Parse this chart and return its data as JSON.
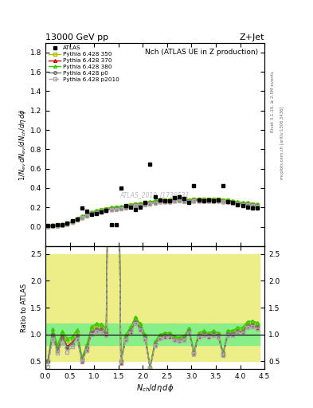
{
  "title_top": "13000 GeV pp",
  "title_right": "Z+Jet",
  "plot_title": "Nch (ATLAS UE in Z production)",
  "xlabel": "$N_{ch}/d\\eta\\,d\\phi$",
  "ylabel_main": "$1/N_{ev}\\,dN_{ev}/dN_{ch}/d\\eta\\,d\\phi$",
  "ylabel_ratio": "Ratio to ATLAS",
  "watermark": "ATLAS_2019_I1736531",
  "right_label_top": "Rivet 3.1.10, ≥ 2.5M events",
  "right_label_bot": "mcplots.cern.ch [arXiv:1306.3436]",
  "xlim": [
    0,
    4.5
  ],
  "ylim_main": [
    -0.2,
    1.9
  ],
  "ylim_ratio": [
    0.35,
    2.65
  ],
  "atlas_x": [
    0.05,
    0.15,
    0.25,
    0.35,
    0.45,
    0.55,
    0.65,
    0.75,
    0.85,
    0.95,
    1.05,
    1.15,
    1.25,
    1.35,
    1.45,
    1.55,
    1.65,
    1.75,
    1.85,
    1.95,
    2.05,
    2.15,
    2.25,
    2.35,
    2.45,
    2.55,
    2.65,
    2.75,
    2.85,
    2.95,
    3.05,
    3.15,
    3.25,
    3.35,
    3.45,
    3.55,
    3.65,
    3.75,
    3.85,
    3.95,
    4.05,
    4.15,
    4.25,
    4.35
  ],
  "atlas_y": [
    0.01,
    0.01,
    0.02,
    0.02,
    0.04,
    0.06,
    0.08,
    0.19,
    0.16,
    0.13,
    0.14,
    0.15,
    0.17,
    0.02,
    0.02,
    0.4,
    0.22,
    0.2,
    0.18,
    0.2,
    0.25,
    0.65,
    0.31,
    0.28,
    0.27,
    0.27,
    0.3,
    0.31,
    0.29,
    0.25,
    0.42,
    0.28,
    0.27,
    0.28,
    0.27,
    0.28,
    0.42,
    0.26,
    0.25,
    0.23,
    0.22,
    0.2,
    0.19,
    0.19
  ],
  "py350_x": [
    0.05,
    0.15,
    0.25,
    0.35,
    0.45,
    0.55,
    0.65,
    0.75,
    0.85,
    0.95,
    1.05,
    1.15,
    1.25,
    1.35,
    1.45,
    1.55,
    1.65,
    1.75,
    1.85,
    1.95,
    2.05,
    2.15,
    2.25,
    2.35,
    2.45,
    2.55,
    2.65,
    2.75,
    2.85,
    2.95,
    3.05,
    3.15,
    3.25,
    3.35,
    3.45,
    3.55,
    3.65,
    3.75,
    3.85,
    3.95,
    4.05,
    4.15,
    4.25,
    4.35
  ],
  "py350_y": [
    0.005,
    0.01,
    0.015,
    0.02,
    0.035,
    0.055,
    0.082,
    0.105,
    0.125,
    0.145,
    0.163,
    0.175,
    0.185,
    0.193,
    0.198,
    0.203,
    0.213,
    0.223,
    0.233,
    0.235,
    0.243,
    0.253,
    0.263,
    0.272,
    0.272,
    0.272,
    0.282,
    0.285,
    0.275,
    0.272,
    0.282,
    0.282,
    0.282,
    0.282,
    0.282,
    0.282,
    0.272,
    0.272,
    0.262,
    0.252,
    0.242,
    0.242,
    0.232,
    0.225
  ],
  "py370_y": [
    0.005,
    0.01,
    0.014,
    0.019,
    0.031,
    0.051,
    0.076,
    0.096,
    0.116,
    0.134,
    0.152,
    0.162,
    0.172,
    0.181,
    0.186,
    0.191,
    0.201,
    0.211,
    0.221,
    0.221,
    0.231,
    0.241,
    0.251,
    0.261,
    0.261,
    0.261,
    0.271,
    0.275,
    0.265,
    0.261,
    0.271,
    0.271,
    0.271,
    0.271,
    0.271,
    0.271,
    0.261,
    0.261,
    0.251,
    0.241,
    0.231,
    0.231,
    0.221,
    0.215
  ],
  "py380_y": [
    0.005,
    0.011,
    0.016,
    0.021,
    0.037,
    0.057,
    0.087,
    0.108,
    0.129,
    0.149,
    0.168,
    0.179,
    0.189,
    0.198,
    0.203,
    0.208,
    0.218,
    0.228,
    0.238,
    0.24,
    0.248,
    0.258,
    0.268,
    0.278,
    0.278,
    0.278,
    0.288,
    0.292,
    0.282,
    0.278,
    0.288,
    0.288,
    0.288,
    0.288,
    0.288,
    0.288,
    0.278,
    0.278,
    0.268,
    0.258,
    0.248,
    0.248,
    0.238,
    0.232
  ],
  "pyp0_y": [
    0.005,
    0.01,
    0.014,
    0.019,
    0.03,
    0.049,
    0.078,
    0.098,
    0.118,
    0.136,
    0.154,
    0.164,
    0.174,
    0.183,
    0.188,
    0.193,
    0.203,
    0.213,
    0.223,
    0.223,
    0.233,
    0.243,
    0.253,
    0.263,
    0.263,
    0.263,
    0.273,
    0.277,
    0.267,
    0.263,
    0.273,
    0.273,
    0.273,
    0.273,
    0.273,
    0.273,
    0.263,
    0.263,
    0.253,
    0.243,
    0.233,
    0.233,
    0.223,
    0.217
  ],
  "pyp2010_y": [
    0.004,
    0.009,
    0.013,
    0.017,
    0.027,
    0.046,
    0.073,
    0.092,
    0.112,
    0.129,
    0.147,
    0.157,
    0.167,
    0.176,
    0.181,
    0.186,
    0.196,
    0.206,
    0.216,
    0.216,
    0.226,
    0.236,
    0.246,
    0.256,
    0.256,
    0.256,
    0.266,
    0.27,
    0.26,
    0.256,
    0.266,
    0.266,
    0.266,
    0.266,
    0.266,
    0.266,
    0.256,
    0.256,
    0.246,
    0.236,
    0.226,
    0.226,
    0.216,
    0.21
  ],
  "color_350": "#b8b800",
  "color_370": "#cc0000",
  "color_380": "#33cc00",
  "color_p0": "#777777",
  "color_p2010": "#aaaaaa",
  "band_inner_color": "#88ee88",
  "band_outer_color": "#eeee88",
  "ratio_yticks": [
    0.5,
    1.0,
    1.5,
    2.0,
    2.5
  ],
  "main_yticks": [
    0.0,
    0.2,
    0.4,
    0.6,
    0.8,
    1.0,
    1.2,
    1.4,
    1.6,
    1.8
  ]
}
